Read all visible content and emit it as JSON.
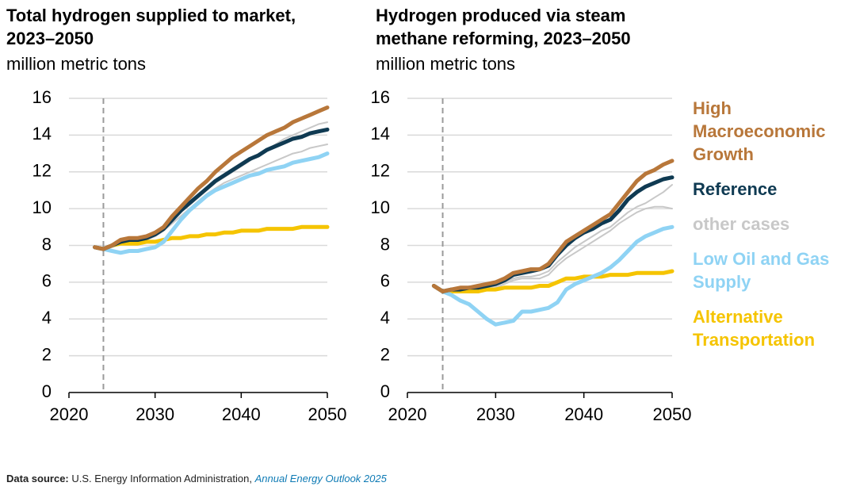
{
  "chart_data": [
    {
      "type": "line",
      "title": "Total hydrogen supplied to market, 2023–2050",
      "subtitle": "million metric tons",
      "x": [
        2023,
        2024,
        2025,
        2026,
        2027,
        2028,
        2029,
        2030,
        2031,
        2032,
        2033,
        2034,
        2035,
        2036,
        2037,
        2038,
        2039,
        2040,
        2041,
        2042,
        2043,
        2044,
        2045,
        2046,
        2047,
        2048,
        2049,
        2050
      ],
      "xlim": [
        2020,
        2050
      ],
      "xticks": [
        2020,
        2030,
        2040,
        2050
      ],
      "ylim": [
        0,
        16
      ],
      "yticks": [
        0,
        2,
        4,
        6,
        8,
        10,
        12,
        14,
        16
      ],
      "grid": true,
      "vline": 2024,
      "series": [
        {
          "color": "#b8773a",
          "values": [
            7.9,
            7.8,
            8.0,
            8.3,
            8.4,
            8.4,
            8.5,
            8.7,
            9.0,
            9.6,
            10.1,
            10.6,
            11.1,
            11.5,
            12.0,
            12.4,
            12.8,
            13.1,
            13.4,
            13.7,
            14.0,
            14.2,
            14.4,
            14.7,
            14.9,
            15.1,
            15.3,
            15.5
          ]
        },
        {
          "color": "#0f3a52",
          "values": [
            7.9,
            7.8,
            8.0,
            8.2,
            8.3,
            8.3,
            8.4,
            8.6,
            8.9,
            9.4,
            9.9,
            10.3,
            10.7,
            11.1,
            11.5,
            11.8,
            12.1,
            12.4,
            12.7,
            12.9,
            13.2,
            13.4,
            13.6,
            13.8,
            13.9,
            14.1,
            14.2,
            14.3
          ]
        },
        {
          "color": "#c8c8c8",
          "lines": [
            [
              7.9,
              7.8,
              8.0,
              8.2,
              8.3,
              8.3,
              8.4,
              8.6,
              8.9,
              9.3,
              9.8,
              10.2,
              10.6,
              11.0,
              11.4,
              11.7,
              12.0,
              12.3,
              12.6,
              12.9,
              13.2,
              13.5,
              13.8,
              14.0,
              14.2,
              14.4,
              14.6,
              14.7
            ],
            [
              7.9,
              7.8,
              7.9,
              8.1,
              8.2,
              8.2,
              8.3,
              8.5,
              8.8,
              9.2,
              9.6,
              10.0,
              10.4,
              10.8,
              11.1,
              11.4,
              11.6,
              11.8,
              12.0,
              12.2,
              12.4,
              12.6,
              12.8,
              13.0,
              13.1,
              13.3,
              13.4,
              13.5
            ]
          ]
        },
        {
          "color": "#8fd3f4",
          "values": [
            7.9,
            7.8,
            7.7,
            7.6,
            7.7,
            7.7,
            7.8,
            7.9,
            8.2,
            8.8,
            9.4,
            9.9,
            10.3,
            10.7,
            11.0,
            11.2,
            11.4,
            11.6,
            11.8,
            11.9,
            12.1,
            12.2,
            12.3,
            12.5,
            12.6,
            12.7,
            12.8,
            13.0
          ]
        },
        {
          "color": "#f5c400",
          "values": [
            7.9,
            7.8,
            8.0,
            8.1,
            8.1,
            8.1,
            8.2,
            8.2,
            8.3,
            8.4,
            8.4,
            8.5,
            8.5,
            8.6,
            8.6,
            8.7,
            8.7,
            8.8,
            8.8,
            8.8,
            8.9,
            8.9,
            8.9,
            8.9,
            9.0,
            9.0,
            9.0,
            9.0
          ]
        }
      ]
    },
    {
      "type": "line",
      "title": "Hydrogen produced via steam methane reforming, 2023–2050",
      "subtitle": "million metric tons",
      "x": [
        2023,
        2024,
        2025,
        2026,
        2027,
        2028,
        2029,
        2030,
        2031,
        2032,
        2033,
        2034,
        2035,
        2036,
        2037,
        2038,
        2039,
        2040,
        2041,
        2042,
        2043,
        2044,
        2045,
        2046,
        2047,
        2048,
        2049,
        2050
      ],
      "xlim": [
        2020,
        2050
      ],
      "xticks": [
        2020,
        2030,
        2040,
        2050
      ],
      "ylim": [
        0,
        16
      ],
      "yticks": [
        0,
        2,
        4,
        6,
        8,
        10,
        12,
        14,
        16
      ],
      "grid": true,
      "vline": 2024,
      "legend": "right",
      "series": [
        {
          "name": "High Macroeconomic Growth",
          "color": "#b8773a",
          "values": [
            5.8,
            5.5,
            5.6,
            5.7,
            5.7,
            5.8,
            5.9,
            6.0,
            6.2,
            6.5,
            6.6,
            6.7,
            6.7,
            7.0,
            7.6,
            8.2,
            8.5,
            8.8,
            9.1,
            9.4,
            9.7,
            10.3,
            10.9,
            11.5,
            11.9,
            12.1,
            12.4,
            12.6
          ]
        },
        {
          "name": "Reference",
          "color": "#0f3a52",
          "values": [
            5.8,
            5.5,
            5.6,
            5.6,
            5.7,
            5.7,
            5.8,
            5.9,
            6.1,
            6.4,
            6.5,
            6.6,
            6.7,
            6.9,
            7.5,
            8.0,
            8.4,
            8.7,
            8.9,
            9.2,
            9.4,
            9.9,
            10.5,
            10.9,
            11.2,
            11.4,
            11.6,
            11.7
          ]
        },
        {
          "name": "other cases",
          "color": "#c8c8c8",
          "lines": [
            [
              5.8,
              5.5,
              5.5,
              5.5,
              5.5,
              5.6,
              5.7,
              5.8,
              6.0,
              6.2,
              6.3,
              6.3,
              6.4,
              6.6,
              7.1,
              7.5,
              7.9,
              8.2,
              8.5,
              8.8,
              9.0,
              9.4,
              9.8,
              10.1,
              10.3,
              10.6,
              10.9,
              11.3
            ],
            [
              5.8,
              5.5,
              5.5,
              5.5,
              5.5,
              5.5,
              5.6,
              5.7,
              5.9,
              6.1,
              6.2,
              6.2,
              6.2,
              6.4,
              6.9,
              7.3,
              7.6,
              7.9,
              8.2,
              8.5,
              8.8,
              9.2,
              9.5,
              9.8,
              10.0,
              10.1,
              10.1,
              10.0
            ]
          ]
        },
        {
          "name": "Low Oil and Gas Supply",
          "color": "#8fd3f4",
          "values": [
            5.8,
            5.5,
            5.3,
            5.0,
            4.8,
            4.4,
            4.0,
            3.7,
            3.8,
            3.9,
            4.4,
            4.4,
            4.5,
            4.6,
            4.9,
            5.6,
            5.9,
            6.1,
            6.3,
            6.5,
            6.8,
            7.2,
            7.7,
            8.2,
            8.5,
            8.7,
            8.9,
            9.0
          ]
        },
        {
          "name": "Alternative Transportation",
          "color": "#f5c400",
          "values": [
            5.8,
            5.5,
            5.5,
            5.5,
            5.5,
            5.5,
            5.6,
            5.6,
            5.7,
            5.7,
            5.7,
            5.7,
            5.8,
            5.8,
            6.0,
            6.2,
            6.2,
            6.3,
            6.3,
            6.3,
            6.4,
            6.4,
            6.4,
            6.5,
            6.5,
            6.5,
            6.5,
            6.6
          ]
        }
      ]
    }
  ],
  "source": {
    "label": "Data source:",
    "text": "U.S. Energy Information Administration,",
    "link": "Annual Energy Outlook 2025"
  }
}
